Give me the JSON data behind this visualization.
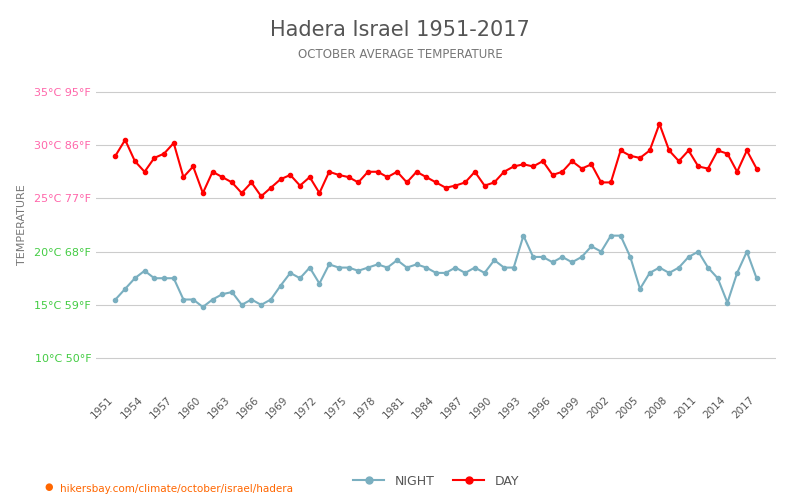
{
  "title": "Hadera Israel 1951-2017",
  "subtitle": "OCTOBER AVERAGE TEMPERATURE",
  "xlabel_bottom": "hikersbay.com/climate/october/israel/hadera",
  "ylabel": "TEMPERATURE",
  "years": [
    1951,
    1952,
    1953,
    1954,
    1955,
    1956,
    1957,
    1958,
    1959,
    1960,
    1961,
    1962,
    1963,
    1964,
    1965,
    1966,
    1967,
    1968,
    1969,
    1970,
    1971,
    1972,
    1973,
    1974,
    1975,
    1976,
    1977,
    1978,
    1979,
    1980,
    1981,
    1982,
    1983,
    1984,
    1985,
    1986,
    1987,
    1988,
    1989,
    1990,
    1991,
    1992,
    1993,
    1994,
    1995,
    1996,
    1997,
    1998,
    1999,
    2000,
    2001,
    2002,
    2003,
    2004,
    2005,
    2006,
    2007,
    2008,
    2009,
    2010,
    2011,
    2012,
    2013,
    2014,
    2015,
    2016,
    2017
  ],
  "day_temps": [
    29.0,
    30.5,
    28.5,
    27.5,
    28.8,
    29.2,
    30.2,
    27.0,
    28.0,
    25.5,
    27.5,
    27.0,
    26.5,
    25.5,
    26.5,
    25.2,
    26.0,
    26.8,
    27.2,
    26.2,
    27.0,
    25.5,
    27.5,
    27.2,
    27.0,
    26.5,
    27.5,
    27.5,
    27.0,
    27.5,
    26.5,
    27.5,
    27.0,
    26.5,
    26.0,
    26.2,
    26.5,
    27.5,
    26.2,
    26.5,
    27.5,
    28.0,
    28.2,
    28.0,
    28.5,
    27.2,
    27.5,
    28.5,
    27.8,
    28.2,
    26.5,
    26.5,
    29.5,
    29.0,
    28.8,
    29.5,
    32.0,
    29.5,
    28.5,
    29.5,
    28.0,
    27.8,
    29.5,
    29.2,
    27.5,
    29.5,
    27.8
  ],
  "night_temps": [
    15.5,
    16.5,
    17.5,
    18.2,
    17.5,
    17.5,
    17.5,
    15.5,
    15.5,
    14.8,
    15.5,
    16.0,
    16.2,
    15.0,
    15.5,
    15.0,
    15.5,
    16.8,
    18.0,
    17.5,
    18.5,
    17.0,
    18.8,
    18.5,
    18.5,
    18.2,
    18.5,
    18.8,
    18.5,
    19.2,
    18.5,
    18.8,
    18.5,
    18.0,
    18.0,
    18.5,
    18.0,
    18.5,
    18.0,
    19.2,
    18.5,
    18.5,
    21.5,
    19.5,
    19.5,
    19.0,
    19.5,
    19.0,
    19.5,
    20.5,
    20.0,
    21.5,
    21.5,
    19.5,
    16.5,
    18.0,
    18.5,
    18.0,
    18.5,
    19.5,
    20.0,
    18.5,
    17.5,
    15.2,
    18.0,
    20.0,
    17.5
  ],
  "day_color": "#ff0000",
  "night_color": "#7aafc0",
  "marker_size": 3,
  "line_width": 1.5,
  "yticks_celsius": [
    10,
    15,
    20,
    25,
    30,
    35
  ],
  "yticks_fahrenheit": [
    50,
    59,
    68,
    77,
    86,
    95
  ],
  "ytick_colors": [
    "#44cc44",
    "#44cc44",
    "#44cc44",
    "#ff66aa",
    "#ff66aa",
    "#ff66aa"
  ],
  "ylim": [
    7,
    38
  ],
  "grid_color": "#cccccc",
  "background_color": "#ffffff",
  "title_color": "#555555",
  "subtitle_color": "#777777",
  "ylabel_color": "#777777",
  "legend_night_label": "NIGHT",
  "legend_day_label": "DAY",
  "url_color": "#ff6600"
}
